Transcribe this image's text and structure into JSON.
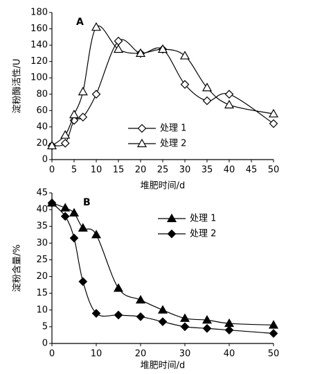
{
  "chart_data": [
    {
      "type": "line",
      "annotation": "A",
      "x_label": "堆肥时间/d",
      "y_label": "淀粉酶活性/U",
      "x": [
        0,
        3,
        5,
        7,
        10,
        15,
        20,
        25,
        30,
        35,
        40,
        50
      ],
      "series": [
        {
          "name": "处理 1",
          "color": "#000000",
          "marker": "diamond",
          "filled": false,
          "values": [
            17,
            20,
            48,
            52,
            80,
            145,
            130,
            135,
            92,
            72,
            80,
            44
          ]
        },
        {
          "name": "处理 2",
          "color": "#000000",
          "marker": "triangle",
          "filled": false,
          "values": [
            17,
            30,
            55,
            83,
            162,
            135,
            130,
            135,
            127,
            88,
            67,
            56
          ]
        }
      ],
      "xlim": [
        0,
        50
      ],
      "xticks": [
        0,
        5,
        10,
        15,
        20,
        25,
        30,
        35,
        40,
        45,
        50
      ],
      "ylim": [
        0,
        180
      ],
      "yticks": [
        0,
        20,
        40,
        60,
        80,
        100,
        120,
        140,
        160,
        180
      ],
      "legend": "lower center",
      "grid": false
    },
    {
      "type": "line",
      "annotation": "B",
      "x_label": "堆肥时间/d",
      "y_label": "淀粉含量/%",
      "x": [
        0,
        3,
        5,
        7,
        10,
        15,
        20,
        25,
        30,
        35,
        40,
        50
      ],
      "series": [
        {
          "name": "处理 1",
          "color": "#000000",
          "marker": "triangle",
          "filled": true,
          "values": [
            42,
            40.5,
            39,
            34.5,
            32.5,
            16.5,
            13,
            10,
            7.5,
            7,
            6,
            5.5
          ]
        },
        {
          "name": "处理 2",
          "color": "#000000",
          "marker": "diamond",
          "filled": true,
          "values": [
            42,
            38,
            31.5,
            18.5,
            9,
            8.5,
            8,
            6.5,
            5,
            4.5,
            4,
            3
          ]
        }
      ],
      "xlim": [
        0,
        50
      ],
      "xticks": [
        0,
        10,
        20,
        30,
        40,
        50
      ],
      "ylim": [
        0,
        45
      ],
      "yticks": [
        0,
        5,
        10,
        15,
        20,
        25,
        30,
        35,
        40,
        45
      ],
      "legend": "upper center",
      "grid": false
    }
  ]
}
